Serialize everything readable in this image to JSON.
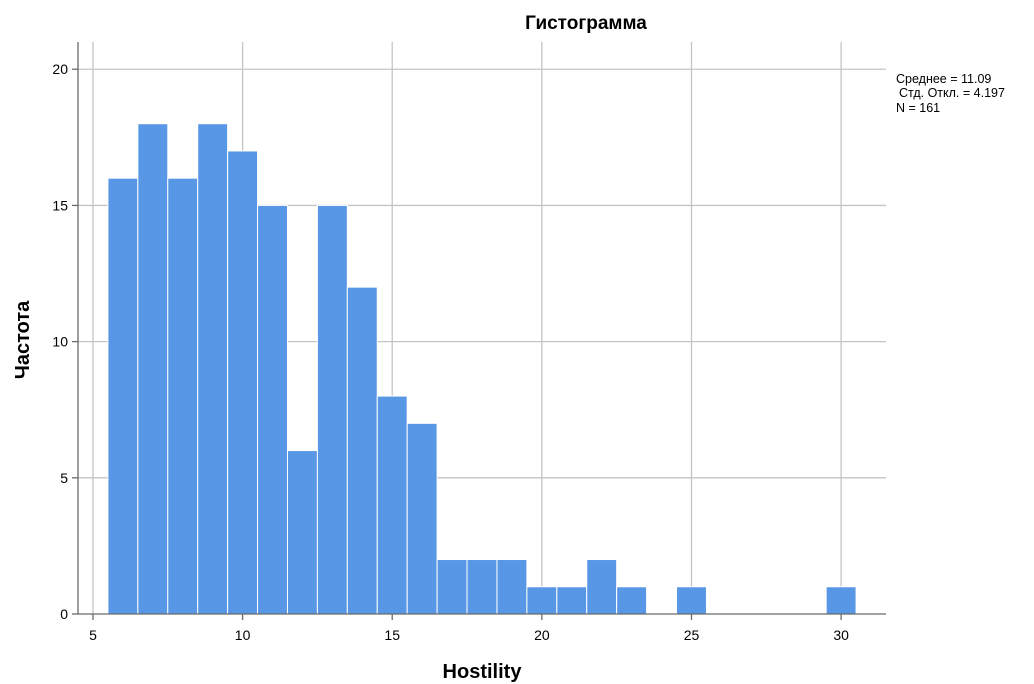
{
  "chart_data": {
    "type": "bar",
    "title": "Гистограмма",
    "xlabel": "Hostility",
    "ylabel": "Частота",
    "xlim": [
      4.5,
      31.5
    ],
    "ylim": [
      0,
      21
    ],
    "x_ticks": [
      5,
      10,
      15,
      20,
      25,
      30
    ],
    "y_ticks": [
      0,
      5,
      10,
      15,
      20
    ],
    "grid": true,
    "bin_width": 1,
    "bins": [
      6,
      7,
      8,
      9,
      10,
      11,
      12,
      13,
      14,
      15,
      16,
      17,
      18,
      19,
      20,
      21,
      22,
      23,
      24,
      25,
      26,
      27,
      28,
      29,
      30
    ],
    "values": [
      16,
      18,
      16,
      18,
      17,
      15,
      6,
      15,
      12,
      8,
      7,
      2,
      2,
      2,
      1,
      1,
      2,
      1,
      0,
      1,
      0,
      0,
      0,
      0,
      1
    ],
    "bar_color": "#5897e5",
    "stats": {
      "mean_label": "Среднее = 11.09",
      "std_label": "Стд. Откл. = 4.197",
      "n_label": "N = 161"
    }
  }
}
